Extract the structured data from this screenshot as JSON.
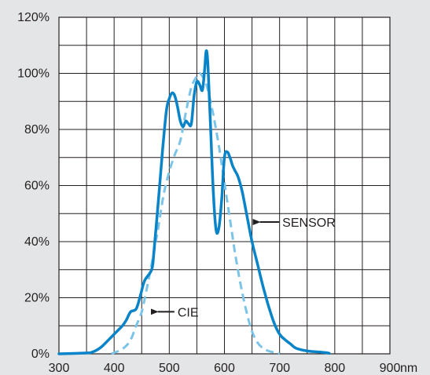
{
  "chart_data": {
    "type": "line",
    "title": "",
    "xlabel": "",
    "ylabel": "",
    "x_unit": "nm",
    "xlim": [
      300,
      900
    ],
    "ylim": [
      0,
      120
    ],
    "x_ticks": [
      300,
      400,
      500,
      600,
      700,
      800,
      900
    ],
    "x_tick_labels": [
      "300",
      "400",
      "500",
      "600",
      "700",
      "800",
      "900"
    ],
    "y_ticks": [
      0,
      20,
      40,
      60,
      80,
      100,
      120
    ],
    "y_tick_labels": [
      "0%",
      "20%",
      "40%",
      "60%",
      "80%",
      "100%",
      "120%"
    ],
    "grid": true,
    "legend": "none",
    "series": [
      {
        "name": "SENSOR",
        "color": "#0a84c8",
        "style": "solid",
        "x": [
          300,
          350,
          360,
          370,
          380,
          400,
          415,
          422,
          430,
          440,
          448,
          455,
          468,
          472,
          480,
          488,
          495,
          500,
          505,
          510,
          515,
          520,
          525,
          530,
          535,
          540,
          545,
          550,
          555,
          560,
          564,
          567,
          570,
          575,
          580,
          585,
          590,
          595,
          600,
          605,
          610,
          615,
          620,
          625,
          632,
          640,
          650,
          660,
          670,
          680,
          690,
          700,
          710,
          720,
          730,
          750,
          780,
          790
        ],
        "y": [
          0,
          0.3,
          0.6,
          1.5,
          3,
          7,
          10,
          12,
          15,
          16,
          21,
          26,
          30,
          36,
          54,
          73,
          87,
          91,
          93,
          92,
          88,
          83,
          81,
          83,
          82,
          82,
          92,
          97,
          96,
          94,
          101,
          108,
          103,
          80,
          57,
          44,
          45,
          55,
          70,
          72,
          70,
          67,
          65,
          63,
          58,
          50,
          40,
          32,
          24,
          17,
          11,
          7,
          5,
          3.5,
          2,
          1,
          0.5,
          0.2
        ]
      },
      {
        "name": "CIE",
        "color": "#7bc4e8",
        "style": "dashed",
        "x": [
          395,
          400,
          410,
          420,
          430,
          440,
          450,
          460,
          470,
          480,
          490,
          500,
          510,
          520,
          530,
          540,
          550,
          555,
          560,
          565,
          570,
          580,
          590,
          600,
          610,
          620,
          630,
          640,
          650,
          660,
          670,
          680,
          690,
          700
        ],
        "y": [
          0,
          0.4,
          1.2,
          2.5,
          5,
          10,
          15,
          24,
          34,
          45,
          57,
          65,
          71,
          76,
          86,
          95,
          99,
          100,
          99,
          97,
          94,
          85,
          74,
          61,
          48,
          35,
          24,
          15,
          8,
          4,
          2,
          1,
          0.5,
          0
        ]
      }
    ],
    "annotations": [
      {
        "text": "SENSOR",
        "series": "SENSOR",
        "arrow_x": 650,
        "arrow_y": 47,
        "label_x": 705,
        "label_y": 47
      },
      {
        "text": "CIE",
        "series": "CIE",
        "arrow_x": 465,
        "arrow_y": 15,
        "label_x": 515,
        "label_y": 15
      }
    ]
  }
}
